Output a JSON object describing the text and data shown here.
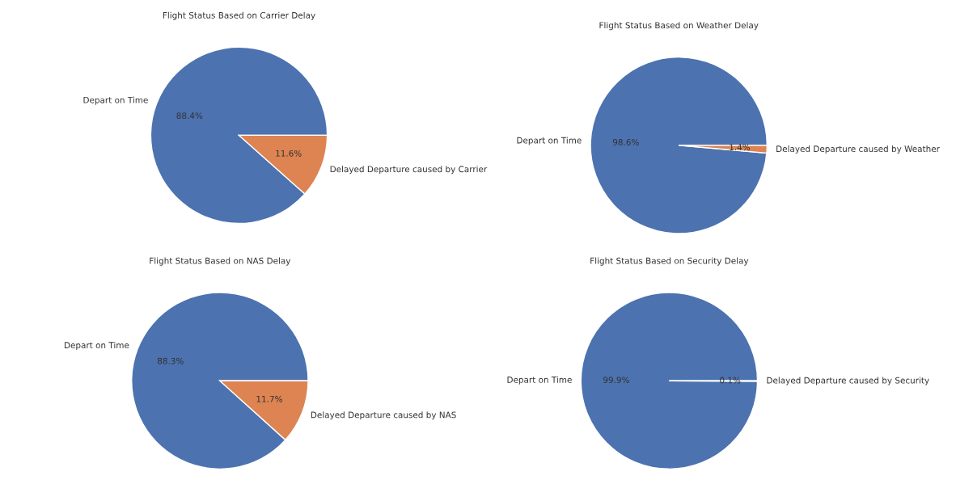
{
  "chart_data": [
    {
      "type": "pie",
      "title": "Flight Status Based on Carrier Delay",
      "categories": [
        "Depart on Time",
        "Delayed Departure caused by Carrier"
      ],
      "values": [
        88.4,
        11.6
      ],
      "value_labels": [
        "88.4%",
        "11.6%"
      ],
      "colors": [
        "#4c72b0",
        "#dd8452"
      ]
    },
    {
      "type": "pie",
      "title": "Flight Status Based on Weather Delay",
      "categories": [
        "Depart on Time",
        "Delayed Departure caused by Weather"
      ],
      "values": [
        98.6,
        1.4
      ],
      "value_labels": [
        "98.6%",
        "1.4%"
      ],
      "colors": [
        "#4c72b0",
        "#dd8452"
      ]
    },
    {
      "type": "pie",
      "title": "Flight Status Based on NAS Delay",
      "categories": [
        "Depart on Time",
        "Delayed Departure caused by NAS"
      ],
      "values": [
        88.3,
        11.7
      ],
      "value_labels": [
        "88.3%",
        "11.7%"
      ],
      "colors": [
        "#4c72b0",
        "#dd8452"
      ]
    },
    {
      "type": "pie",
      "title": "Flight Status Based on Security Delay",
      "categories": [
        "Depart on Time",
        "Delayed Departure caused by Security"
      ],
      "values": [
        99.9,
        0.1
      ],
      "value_labels": [
        "99.9%",
        "0.1%"
      ],
      "colors": [
        "#4c72b0",
        "#dd8452"
      ]
    }
  ]
}
